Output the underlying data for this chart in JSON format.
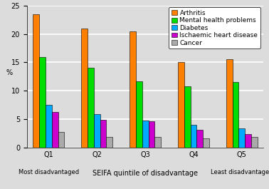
{
  "quintile_labels": [
    "Q1",
    "Q2",
    "Q3",
    "Q4",
    "Q5"
  ],
  "sublabels": [
    "Most disadvantaged",
    "",
    "",
    "",
    "Least disadvantaged"
  ],
  "conditions": [
    "Arthritis",
    "Mental health problems",
    "Diabetes",
    "Ischaemic heart disease",
    "Cancer"
  ],
  "colors": [
    "#FF8000",
    "#00DD00",
    "#00AAFF",
    "#CC00CC",
    "#AAAAAA"
  ],
  "values": {
    "Arthritis": [
      23.5,
      21.0,
      20.5,
      15.0,
      15.5
    ],
    "Mental health problems": [
      16.0,
      14.0,
      11.7,
      10.8,
      11.5
    ],
    "Diabetes": [
      7.5,
      5.9,
      4.8,
      4.0,
      3.3
    ],
    "Ischaemic heart disease": [
      6.2,
      4.9,
      4.6,
      3.1,
      2.4
    ],
    "Cancer": [
      2.7,
      1.9,
      1.9,
      1.6,
      1.8
    ]
  },
  "ylabel": "%",
  "xlabel": "SEIFA quintile of disadvantage",
  "ylim": [
    0,
    25
  ],
  "yticks": [
    0,
    5,
    10,
    15,
    20,
    25
  ],
  "grid_color": "white",
  "bg_color": "#DCDCDC",
  "bar_width": 0.13,
  "legend_fontsize": 6.5,
  "axis_fontsize": 7,
  "tick_fontsize": 7,
  "sublabel_fontsize": 6
}
